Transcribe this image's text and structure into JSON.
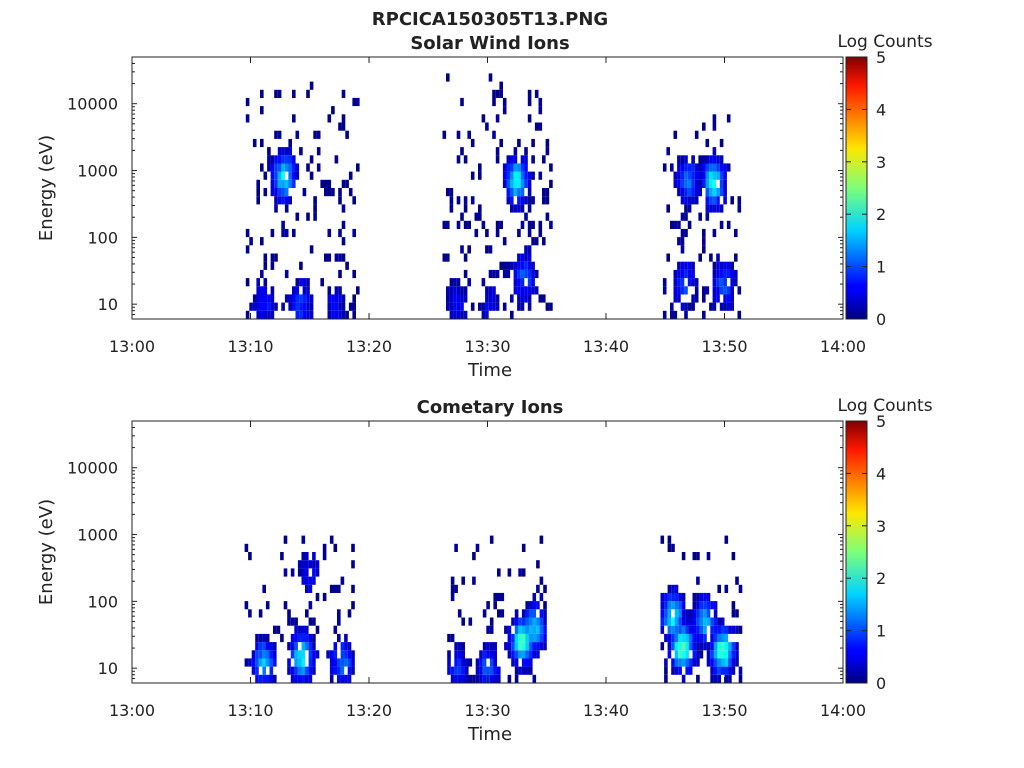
{
  "figure_title": "RPCICA150305T13.PNG",
  "chart_data": [
    {
      "type": "heatmap",
      "title": "Solar Wind Ions",
      "xlabel": "Time",
      "ylabel": "Energy (eV)",
      "x_range": [
        "13:00",
        "14:00"
      ],
      "x_ticks": [
        "13:00",
        "13:10",
        "13:20",
        "13:30",
        "13:40",
        "13:50",
        "14:00"
      ],
      "y_scale": "log",
      "y_range": [
        6,
        50000
      ],
      "y_ticks": [
        {
          "value": 10,
          "label": "10"
        },
        {
          "value": 100,
          "label": "100"
        },
        {
          "value": 1000,
          "label": "1000"
        },
        {
          "value": 10000,
          "label": "10000"
        }
      ],
      "colorbar": {
        "label": "Log Counts",
        "min": 0,
        "max": 5,
        "ticks": [
          "0",
          "1",
          "2",
          "3",
          "4",
          "5"
        ],
        "colormap": "jet"
      },
      "data_blocks": [
        {
          "t_start": 9.6,
          "t_end": 19.0,
          "e_low": 6,
          "e_high": 20000,
          "peaks": [
            {
              "t": 12.7,
              "e": 800,
              "v": 1.8
            },
            {
              "t": 14.1,
              "e": 10,
              "v": 0.9
            },
            {
              "t": 11.0,
              "e": 10,
              "v": 0.7
            },
            {
              "t": 17.0,
              "e": 10,
              "v": 0.6
            }
          ]
        },
        {
          "t_start": 26.2,
          "t_end": 35.2,
          "e_low": 6,
          "e_high": 25000,
          "peaks": [
            {
              "t": 32.3,
              "e": 700,
              "v": 1.8
            },
            {
              "t": 33.0,
              "e": 25,
              "v": 1.0
            },
            {
              "t": 27.3,
              "e": 10,
              "v": 0.6
            },
            {
              "t": 30.0,
              "e": 10,
              "v": 0.5
            }
          ]
        },
        {
          "t_start": 44.8,
          "t_end": 51.3,
          "e_low": 6,
          "e_high": 7000,
          "peaks": [
            {
              "t": 48.9,
              "e": 650,
              "v": 1.9
            },
            {
              "t": 46.8,
              "e": 700,
              "v": 1.2
            },
            {
              "t": 46.5,
              "e": 20,
              "v": 1.0
            },
            {
              "t": 49.8,
              "e": 20,
              "v": 1.0
            }
          ]
        }
      ]
    },
    {
      "type": "heatmap",
      "title": "Cometary Ions",
      "xlabel": "Time",
      "ylabel": "Energy (eV)",
      "x_range": [
        "13:00",
        "14:00"
      ],
      "x_ticks": [
        "13:00",
        "13:10",
        "13:20",
        "13:30",
        "13:40",
        "13:50",
        "14:00"
      ],
      "y_scale": "log",
      "y_range": [
        6,
        50000
      ],
      "y_ticks": [
        {
          "value": 10,
          "label": "10"
        },
        {
          "value": 100,
          "label": "100"
        },
        {
          "value": 1000,
          "label": "1000"
        },
        {
          "value": 10000,
          "label": "10000"
        }
      ],
      "colorbar": {
        "label": "Log Counts",
        "min": 0,
        "max": 5,
        "ticks": [
          "0",
          "1",
          "2",
          "3",
          "4",
          "5"
        ],
        "colormap": "jet"
      },
      "data_blocks": [
        {
          "t_start": 9.5,
          "t_end": 18.8,
          "e_low": 6,
          "e_high": 1000,
          "peaks": [
            {
              "t": 11.0,
              "e": 12,
              "v": 1.5
            },
            {
              "t": 14.2,
              "e": 15,
              "v": 1.9
            },
            {
              "t": 17.6,
              "e": 12,
              "v": 1.2
            },
            {
              "t": 14.8,
              "e": 300,
              "v": 0.6
            }
          ]
        },
        {
          "t_start": 26.3,
          "t_end": 34.8,
          "e_low": 6,
          "e_high": 1000,
          "peaks": [
            {
              "t": 27.3,
              "e": 10,
              "v": 0.8
            },
            {
              "t": 29.9,
              "e": 10,
              "v": 1.0
            },
            {
              "t": 32.8,
              "e": 25,
              "v": 2.2
            },
            {
              "t": 33.8,
              "e": 40,
              "v": 1.6
            }
          ]
        },
        {
          "t_start": 44.6,
          "t_end": 51.2,
          "e_low": 6,
          "e_high": 900,
          "peaks": [
            {
              "t": 46.3,
              "e": 20,
              "v": 2.3
            },
            {
              "t": 49.7,
              "e": 18,
              "v": 2.2
            },
            {
              "t": 45.5,
              "e": 60,
              "v": 1.8
            },
            {
              "t": 48.2,
              "e": 50,
              "v": 1.5
            }
          ]
        }
      ]
    }
  ]
}
